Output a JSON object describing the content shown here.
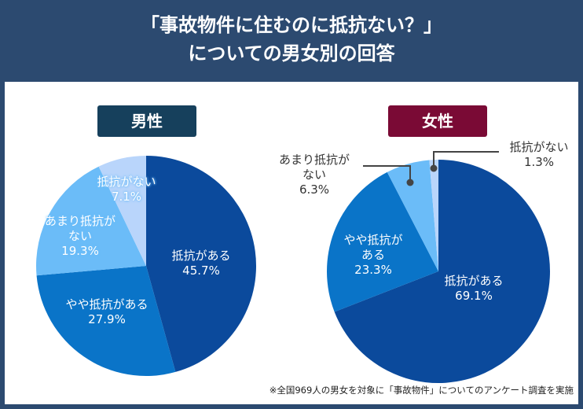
{
  "header": {
    "line1": "「事故物件に住むのに抵抗ない？」",
    "line2": "についての男女別の回答"
  },
  "colors": {
    "header_bg": "#2c4a70",
    "male_badge": "#16405c",
    "female_badge": "#7a0a35",
    "slices": [
      "#0b4a9c",
      "#0a74c8",
      "#6bbcf8",
      "#b9d5fb"
    ]
  },
  "chart_data": [
    {
      "type": "pie",
      "title": "男性",
      "labels": [
        "抵抗がある",
        "やや抵抗がある",
        "あまり抵抗がない",
        "抵抗がない"
      ],
      "values": [
        45.7,
        27.9,
        19.3,
        7.1
      ],
      "value_labels": [
        "45.7%",
        "27.9%",
        "19.3%",
        "7.1%"
      ]
    },
    {
      "type": "pie",
      "title": "女性",
      "labels": [
        "抵抗がある",
        "やや抵抗がある",
        "あまり抵抗がない",
        "抵抗がない"
      ],
      "values": [
        69.1,
        23.3,
        6.3,
        1.3
      ],
      "value_labels": [
        "69.1%",
        "23.3%",
        "6.3%",
        "1.3%"
      ]
    }
  ],
  "label_lines": {
    "male_amari_1": "あまり抵抗が",
    "male_amari_2": "ない",
    "female_amari_1": "あまり抵抗が",
    "female_amari_2": "ない",
    "female_yaya_1": "やや抵抗が",
    "female_yaya_2": "ある"
  },
  "footnote": "※全国969人の男女を対象に「事故物件」についてのアンケート調査を実施"
}
